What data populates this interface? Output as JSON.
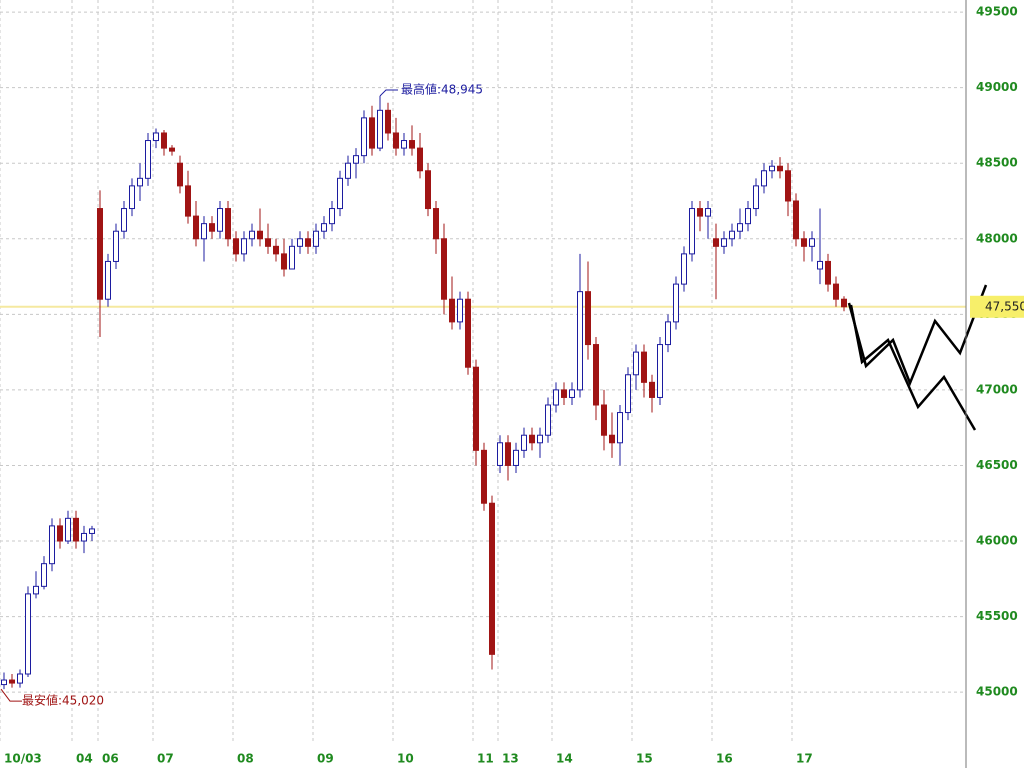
{
  "chart_data": {
    "type": "candlestick",
    "open": [
      45050,
      45080,
      45060,
      45120,
      45650,
      45700,
      45850,
      46100,
      46000,
      46150,
      46000,
      46050,
      48200,
      47600,
      47850,
      48050,
      48200,
      48350,
      48400,
      48650,
      48700,
      48600,
      48500,
      48350,
      48150,
      48000,
      48100,
      48050,
      48200,
      48000,
      47900,
      48000,
      48050,
      48000,
      47950,
      47900,
      47800,
      47950,
      48000,
      47950,
      48050,
      48100,
      48200,
      48400,
      48500,
      48550,
      48800,
      48600,
      48850,
      48700,
      48600,
      48650,
      48600,
      48450,
      48200,
      48000,
      47600,
      47450,
      47600,
      47150,
      46600,
      46250,
      46500,
      46650,
      46500,
      46600,
      46700,
      46650,
      46700,
      46900,
      47000,
      46950,
      47000,
      47650,
      47300,
      46900,
      46700,
      46650,
      46850,
      47100,
      47250,
      47050,
      46950,
      47300,
      47450,
      47700,
      47900,
      48200,
      48150,
      48000,
      47950,
      48000,
      48050,
      48100,
      48200,
      48350,
      48450,
      48480,
      48450,
      48250,
      48000,
      47950,
      47800,
      47850,
      47700,
      47600
    ],
    "high": [
      45130,
      45120,
      45150,
      45700,
      45800,
      45900,
      46150,
      46150,
      46200,
      46200,
      46100,
      46100,
      48320,
      47900,
      48100,
      48250,
      48400,
      48500,
      48700,
      48730,
      48720,
      48620,
      48550,
      48450,
      48250,
      48150,
      48150,
      48250,
      48250,
      48050,
      48050,
      48100,
      48200,
      48100,
      48000,
      48000,
      48000,
      48050,
      48050,
      48100,
      48150,
      48250,
      48450,
      48550,
      48600,
      48850,
      48880,
      48945,
      48900,
      48800,
      48700,
      48750,
      48700,
      48500,
      48250,
      48100,
      47750,
      47650,
      47650,
      47200,
      46650,
      46300,
      46700,
      46700,
      46650,
      46750,
      46750,
      46750,
      46950,
      47050,
      47050,
      47050,
      47900,
      47850,
      47350,
      47000,
      46850,
      46900,
      47150,
      47300,
      47300,
      47100,
      47350,
      47500,
      47750,
      47950,
      48250,
      48250,
      48250,
      48100,
      48050,
      48100,
      48200,
      48250,
      48400,
      48500,
      48520,
      48540,
      48500,
      48300,
      48050,
      48050,
      48200,
      47900,
      47750,
      47620
    ],
    "low": [
      45020,
      45030,
      45030,
      45100,
      45620,
      45680,
      45800,
      45950,
      45980,
      45950,
      45920,
      46000,
      47350,
      47550,
      47800,
      48000,
      48150,
      48250,
      48350,
      48600,
      48550,
      48550,
      48300,
      48100,
      47950,
      47850,
      48000,
      48000,
      47950,
      47850,
      47850,
      47950,
      47950,
      47900,
      47850,
      47750,
      47800,
      47900,
      47900,
      47900,
      48000,
      48050,
      48150,
      48350,
      48400,
      48500,
      48550,
      48580,
      48650,
      48550,
      48550,
      48550,
      48400,
      48150,
      47900,
      47500,
      47400,
      47400,
      47100,
      46500,
      46200,
      45150,
      46450,
      46400,
      46450,
      46550,
      46600,
      46550,
      46650,
      46850,
      46900,
      46900,
      46950,
      47200,
      46800,
      46600,
      46550,
      46500,
      46800,
      47000,
      46950,
      46850,
      46900,
      47250,
      47400,
      47650,
      47850,
      48050,
      48000,
      47600,
      47900,
      47950,
      48000,
      48050,
      48150,
      48300,
      48400,
      48400,
      48150,
      47950,
      47850,
      47850,
      47700,
      47650,
      47550,
      47520
    ],
    "close": [
      45080,
      45060,
      45120,
      45650,
      45700,
      45850,
      46100,
      46000,
      46150,
      46000,
      46050,
      46080,
      47600,
      47850,
      48050,
      48200,
      48350,
      48400,
      48650,
      48700,
      48600,
      48580,
      48350,
      48150,
      48000,
      48100,
      48050,
      48200,
      48000,
      47900,
      48000,
      48050,
      48000,
      47950,
      47900,
      47800,
      47950,
      48000,
      47950,
      48050,
      48100,
      48200,
      48400,
      48500,
      48550,
      48800,
      48600,
      48850,
      48700,
      48600,
      48650,
      48600,
      48450,
      48200,
      48000,
      47600,
      47450,
      47600,
      47150,
      46600,
      46250,
      45250,
      46650,
      46500,
      46600,
      46700,
      46650,
      46700,
      46900,
      47000,
      46950,
      47000,
      47650,
      47300,
      46900,
      46700,
      46650,
      46850,
      47100,
      47250,
      47050,
      46950,
      47300,
      47450,
      47700,
      47900,
      48200,
      48150,
      48200,
      47950,
      48000,
      48050,
      48100,
      48200,
      48350,
      48450,
      48480,
      48450,
      48250,
      48000,
      47950,
      48000,
      47850,
      47700,
      47600,
      47550
    ],
    "up_color": "#1c1ca0",
    "down_color": "#a01414",
    "xlim": [
      0,
      120.75
    ],
    "ylim": [
      44670,
      49580
    ],
    "yticks": [
      45000,
      45500,
      46000,
      46500,
      47000,
      47500,
      48000,
      48500,
      49000,
      49500
    ],
    "xticks": [
      {
        "value": 0,
        "label": "10/03"
      },
      {
        "value": 9,
        "label": "04"
      },
      {
        "value": 12.25,
        "label": "06"
      },
      {
        "value": 19.125,
        "label": "07"
      },
      {
        "value": 29.125,
        "label": "08"
      },
      {
        "value": 39.125,
        "label": "09"
      },
      {
        "value": 49.125,
        "label": "10"
      },
      {
        "value": 59.125,
        "label": "11"
      },
      {
        "value": 62.25,
        "label": "13"
      },
      {
        "value": 69,
        "label": "14"
      },
      {
        "value": 79,
        "label": "15"
      },
      {
        "value": 89,
        "label": "16"
      },
      {
        "value": 99,
        "label": "17"
      }
    ],
    "grid": true,
    "last_price": {
      "value": 47550,
      "label": "47,550"
    },
    "annotations": [
      {
        "index": 47,
        "value": 48945,
        "label": "最高値:48,945",
        "color": "#1c1ca0",
        "side": "high"
      },
      {
        "index": 0,
        "value": 45020,
        "label": "最安値:45,020",
        "color": "#a01414",
        "side": "low"
      }
    ]
  }
}
